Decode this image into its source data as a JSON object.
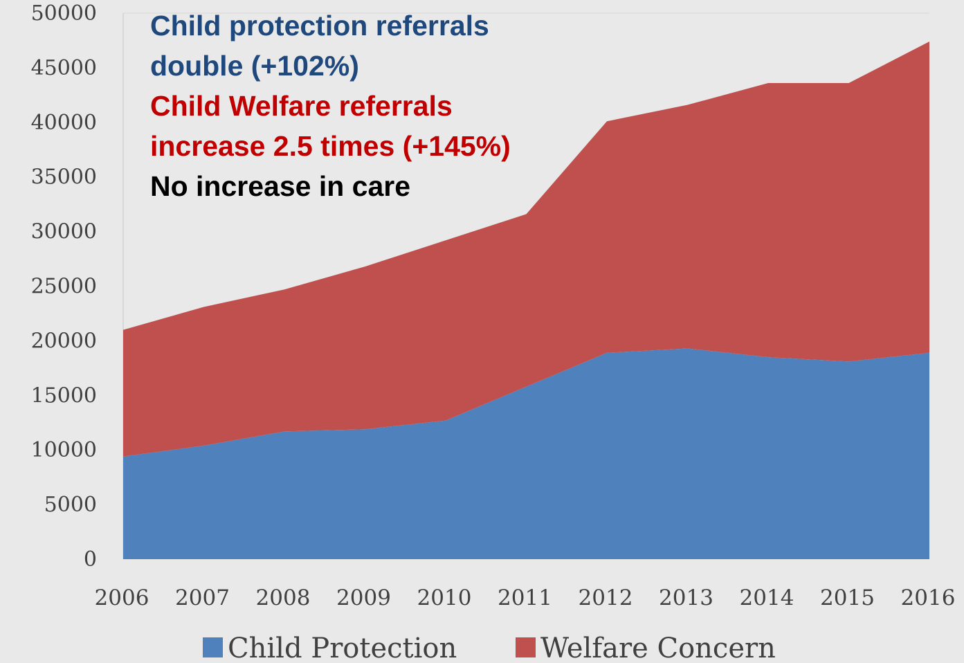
{
  "chart_data": {
    "type": "area",
    "stacked": true,
    "x": [
      "2006",
      "2007",
      "2008",
      "2009",
      "2010",
      "2011",
      "2012",
      "2013",
      "2014",
      "2015",
      "2016"
    ],
    "series": [
      {
        "name": "Child Protection",
        "color": "#4f81bd",
        "values": [
          9400,
          10400,
          11700,
          11900,
          12700,
          15800,
          18900,
          19300,
          18500,
          18100,
          18900
        ]
      },
      {
        "name": "Welfare Concern",
        "color": "#c0504d",
        "values": [
          11600,
          12700,
          13000,
          14900,
          16500,
          15800,
          21200,
          22300,
          25100,
          25500,
          28500
        ]
      }
    ],
    "ylim": [
      0,
      50000
    ],
    "yticks": [
      "0",
      "5000",
      "10000",
      "15000",
      "20000",
      "25000",
      "30000",
      "35000",
      "40000",
      "45000",
      "50000"
    ],
    "grid": false,
    "legend_position": "bottom",
    "annotations": [
      {
        "text": "Child protection referrals",
        "color": "#1f497d"
      },
      {
        "text": "double (+102%)",
        "color": "#1f497d"
      },
      {
        "text": "Child Welfare referrals",
        "color": "#c00000"
      },
      {
        "text": "increase 2.5 times (+145%)",
        "color": "#c00000"
      },
      {
        "text": "No increase in care",
        "color": "#000000"
      }
    ]
  }
}
